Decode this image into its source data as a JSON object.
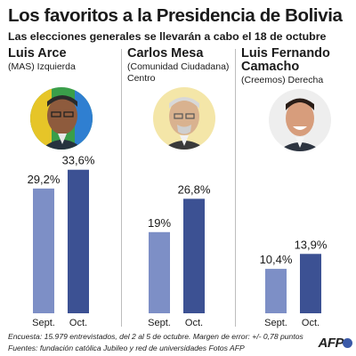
{
  "header": {
    "title": "Los favoritos a la Presidencia de Bolivia",
    "subtitle": "Las elecciones generales se llevarán a cabo el 18 de octubre"
  },
  "candidates": [
    {
      "name": "Luis Arce",
      "party": "(MAS) Izquierda",
      "party2": ""
    },
    {
      "name": "Carlos Mesa",
      "party": "(Comunidad Ciudadana)",
      "party2": "Centro"
    },
    {
      "name": "Luis Fernando",
      "name2": "Camacho",
      "party": "(Creemos) Derecha",
      "party2": ""
    }
  ],
  "chart_data": {
    "type": "bar",
    "categories": [
      "Sept.",
      "Oct."
    ],
    "ylim": [
      0,
      40
    ],
    "series_by_panel": [
      {
        "candidate": "Luis Arce",
        "values": [
          29.2,
          33.6
        ],
        "labels": [
          "29,2%",
          "33,6%"
        ]
      },
      {
        "candidate": "Carlos Mesa",
        "values": [
          19,
          26.8
        ],
        "labels": [
          "19%",
          "26,8%"
        ]
      },
      {
        "candidate": "Luis Fernando Camacho",
        "values": [
          10.4,
          13.9
        ],
        "labels": [
          "10,4%",
          "13,9%"
        ]
      }
    ]
  },
  "colors": {
    "sept_bar": "#7d8fc6",
    "oct_bar": "#3c5193",
    "divider": "#bdbdbd"
  },
  "footer": {
    "line1": "Encuesta: 15.979 entrevistados, del 2 al 5 de octubre. Margen de error: +/- 0,78 puntos",
    "line2": "Fuentes: fundación católica Jubileo y red de universidades      Fotos AFP",
    "logo": "AFP"
  }
}
